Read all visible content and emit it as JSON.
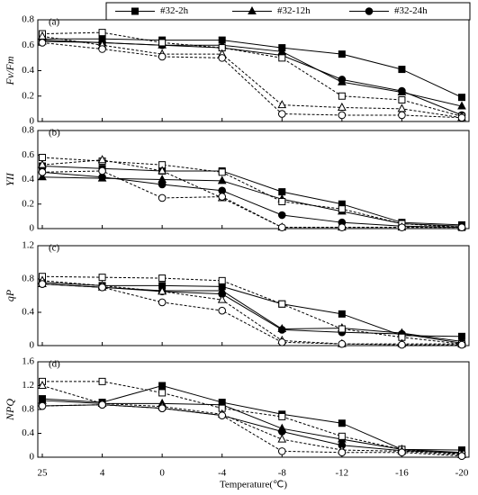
{
  "chart_data": [
    {
      "type": "line",
      "title": "(a)",
      "y_label": "Fv/Fm",
      "ylim": [
        0,
        0.8
      ],
      "yticks": [
        0,
        0.2,
        0.4,
        0.6,
        0.8
      ],
      "series": [
        {
          "name": "#32-2h",
          "color": "#000000",
          "marker": "square",
          "filled": true,
          "dashed": false,
          "values": [
            0.65,
            0.65,
            0.64,
            0.64,
            0.58,
            0.53,
            0.41,
            0.19
          ]
        },
        {
          "name": "#32-12h",
          "color": "#000000",
          "marker": "triangle",
          "filled": true,
          "dashed": false,
          "values": [
            0.63,
            0.62,
            0.6,
            0.6,
            0.55,
            0.31,
            0.23,
            0.12
          ]
        },
        {
          "name": "#32-24h",
          "color": "#000000",
          "marker": "circle",
          "filled": true,
          "dashed": false,
          "values": [
            0.64,
            0.62,
            0.6,
            0.58,
            0.52,
            0.33,
            0.24,
            0.05
          ]
        },
        {
          "color": "#000000",
          "marker": "square",
          "filled": false,
          "dashed": true,
          "values": [
            0.69,
            0.7,
            0.62,
            0.58,
            0.5,
            0.2,
            0.17,
            0.04
          ]
        },
        {
          "color": "#000000",
          "marker": "triangle",
          "filled": false,
          "dashed": true,
          "values": [
            0.67,
            0.6,
            0.53,
            0.53,
            0.13,
            0.11,
            0.1,
            0.03
          ]
        },
        {
          "color": "#000000",
          "marker": "circle",
          "filled": false,
          "dashed": true,
          "values": [
            0.62,
            0.57,
            0.51,
            0.5,
            0.06,
            0.05,
            0.05,
            0.03
          ]
        }
      ]
    },
    {
      "type": "line",
      "title": "(b)",
      "y_label": "YII",
      "ylim": [
        0,
        0.8
      ],
      "yticks": [
        0,
        0.2,
        0.4,
        0.6,
        0.8
      ],
      "series": [
        {
          "color": "#000000",
          "marker": "square",
          "filled": true,
          "dashed": false,
          "values": [
            0.51,
            0.49,
            0.47,
            0.47,
            0.3,
            0.2,
            0.05,
            0.03
          ]
        },
        {
          "color": "#000000",
          "marker": "triangle",
          "filled": true,
          "dashed": false,
          "values": [
            0.42,
            0.41,
            0.4,
            0.39,
            0.24,
            0.14,
            0.04,
            0.02
          ]
        },
        {
          "color": "#000000",
          "marker": "circle",
          "filled": true,
          "dashed": false,
          "values": [
            0.46,
            0.42,
            0.36,
            0.31,
            0.11,
            0.05,
            0.02,
            0.01
          ]
        },
        {
          "color": "#000000",
          "marker": "square",
          "filled": false,
          "dashed": true,
          "values": [
            0.58,
            0.55,
            0.52,
            0.46,
            0.22,
            0.16,
            0.04,
            0.01
          ]
        },
        {
          "color": "#000000",
          "marker": "triangle",
          "filled": false,
          "dashed": true,
          "values": [
            0.52,
            0.56,
            0.47,
            0.25,
            0.01,
            0.01,
            0.01,
            0.01
          ]
        },
        {
          "color": "#000000",
          "marker": "circle",
          "filled": false,
          "dashed": true,
          "values": [
            0.46,
            0.47,
            0.25,
            0.26,
            0.01,
            0.01,
            0.01,
            0.01
          ]
        }
      ]
    },
    {
      "type": "line",
      "title": "(c)",
      "y_label": "qP",
      "ylim": [
        0,
        1.2
      ],
      "yticks": [
        0,
        0.4,
        0.8,
        1.2
      ],
      "series": [
        {
          "color": "#000000",
          "marker": "square",
          "filled": true,
          "dashed": false,
          "values": [
            0.76,
            0.72,
            0.72,
            0.71,
            0.5,
            0.38,
            0.12,
            0.11
          ]
        },
        {
          "color": "#000000",
          "marker": "triangle",
          "filled": true,
          "dashed": false,
          "values": [
            0.74,
            0.7,
            0.66,
            0.66,
            0.2,
            0.21,
            0.15,
            0.05
          ]
        },
        {
          "color": "#000000",
          "marker": "circle",
          "filled": true,
          "dashed": false,
          "values": [
            0.74,
            0.7,
            0.65,
            0.62,
            0.19,
            0.16,
            0.14,
            0.03
          ]
        },
        {
          "color": "#000000",
          "marker": "square",
          "filled": false,
          "dashed": true,
          "values": [
            0.83,
            0.82,
            0.81,
            0.78,
            0.5,
            0.2,
            0.1,
            0.02
          ]
        },
        {
          "color": "#000000",
          "marker": "triangle",
          "filled": false,
          "dashed": true,
          "values": [
            0.78,
            0.72,
            0.65,
            0.55,
            0.06,
            0.02,
            0.02,
            0.02
          ]
        },
        {
          "color": "#000000",
          "marker": "circle",
          "filled": false,
          "dashed": true,
          "values": [
            0.74,
            0.7,
            0.52,
            0.42,
            0.04,
            0.02,
            0.01,
            0.01
          ]
        }
      ]
    },
    {
      "type": "line",
      "title": "(d)",
      "y_label": "NPQ",
      "x_label": "Temperature(℃)",
      "categories": [
        "25",
        "4",
        "0",
        "-4",
        "-8",
        "-12",
        "-16",
        "-20"
      ],
      "ylim": [
        0,
        1.6
      ],
      "yticks": [
        0,
        0.4,
        0.8,
        1.2,
        1.6
      ],
      "series": [
        {
          "color": "#000000",
          "marker": "square",
          "filled": true,
          "dashed": false,
          "values": [
            0.98,
            0.92,
            1.2,
            0.92,
            0.72,
            0.57,
            0.13,
            0.12
          ]
        },
        {
          "color": "#000000",
          "marker": "triangle",
          "filled": true,
          "dashed": false,
          "values": [
            0.95,
            0.9,
            0.9,
            0.88,
            0.48,
            0.3,
            0.13,
            0.08
          ]
        },
        {
          "color": "#000000",
          "marker": "circle",
          "filled": true,
          "dashed": false,
          "values": [
            0.86,
            0.88,
            0.82,
            0.7,
            0.43,
            0.2,
            0.11,
            0.07
          ]
        },
        {
          "color": "#000000",
          "marker": "square",
          "filled": false,
          "dashed": true,
          "values": [
            1.27,
            1.27,
            1.08,
            0.82,
            0.68,
            0.35,
            0.13,
            0.05
          ]
        },
        {
          "color": "#000000",
          "marker": "triangle",
          "filled": false,
          "dashed": true,
          "values": [
            1.2,
            0.9,
            0.85,
            0.72,
            0.3,
            0.12,
            0.1,
            0.04
          ]
        },
        {
          "color": "#000000",
          "marker": "circle",
          "filled": false,
          "dashed": true,
          "values": [
            0.86,
            0.88,
            0.82,
            0.7,
            0.1,
            0.08,
            0.08,
            0.02
          ]
        }
      ]
    }
  ]
}
